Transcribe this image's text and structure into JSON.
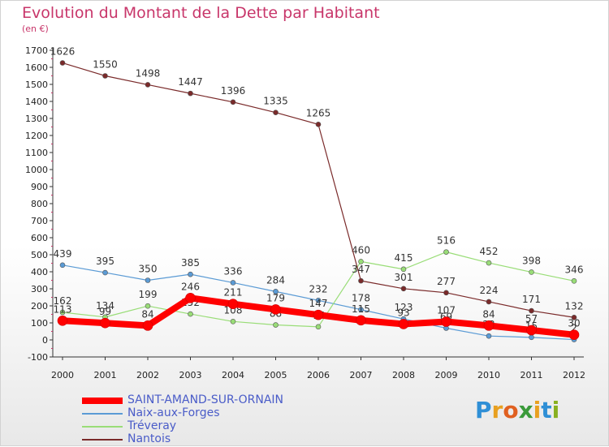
{
  "chart_data": {
    "type": "line",
    "title": "Evolution du Montant de la Dette par Habitant",
    "subtitle": "(en €)",
    "xlabel": "",
    "ylabel": "",
    "categories": [
      "2000",
      "2001",
      "2002",
      "2003",
      "2004",
      "2005",
      "2006",
      "2007",
      "2008",
      "2009",
      "2010",
      "2011",
      "2012"
    ],
    "ylim": [
      -100,
      1700
    ],
    "yticks": [
      "-100",
      "0",
      "100",
      "200",
      "300",
      "400",
      "500",
      "600",
      "700",
      "800",
      "900",
      "1000",
      "1100",
      "1200",
      "1300",
      "1400",
      "1500",
      "1600",
      "1700"
    ],
    "grid": false,
    "legend_position": "bottom-left",
    "series": [
      {
        "name": "SAINT-AMAND-SUR-ORNAIN",
        "color": "#ff0000",
        "values": [
          113,
          99,
          84,
          246,
          211,
          179,
          147,
          115,
          93,
          107,
          84,
          57,
          30
        ],
        "labels": [
          "113",
          "99",
          "84",
          "246",
          "211",
          "179",
          "147",
          "115",
          "93",
          "107",
          "84",
          "57",
          "30"
        ]
      },
      {
        "name": "Naix-aux-Forges",
        "color": "#5b9bd5",
        "values": [
          439,
          395,
          350,
          385,
          336,
          284,
          232,
          178,
          123,
          69,
          23,
          15,
          2
        ],
        "labels": [
          "439",
          "395",
          "350",
          "385",
          "336",
          "284",
          "232",
          "178",
          "123",
          "69",
          "23",
          "15",
          "2"
        ]
      },
      {
        "name": "Tréveray",
        "color": "#99dd77",
        "values": [
          162,
          134,
          199,
          152,
          108,
          88,
          77,
          460,
          415,
          516,
          452,
          398,
          346
        ],
        "labels": [
          "162",
          "134",
          "199",
          "152",
          "108",
          "88",
          "77",
          "460",
          "415",
          "516",
          "452",
          "398",
          "346"
        ]
      },
      {
        "name": "Nantois",
        "color": "#7a2a2a",
        "values": [
          1626,
          1550,
          1498,
          1447,
          1396,
          1335,
          1265,
          347,
          301,
          277,
          224,
          171,
          132
        ],
        "labels": [
          "1626",
          "1550",
          "1498",
          "1447",
          "1396",
          "1335",
          "1265",
          "347",
          "301",
          "277",
          "224",
          "171",
          "132"
        ]
      }
    ]
  },
  "logo": {
    "letters": [
      "P",
      "r",
      "o",
      "x",
      "i",
      "t",
      "i"
    ],
    "colors": [
      "#2f8fd6",
      "#e8a020",
      "#e06020",
      "#3a9a3a",
      "#e8a020",
      "#2f8fd6",
      "#88b020"
    ]
  }
}
